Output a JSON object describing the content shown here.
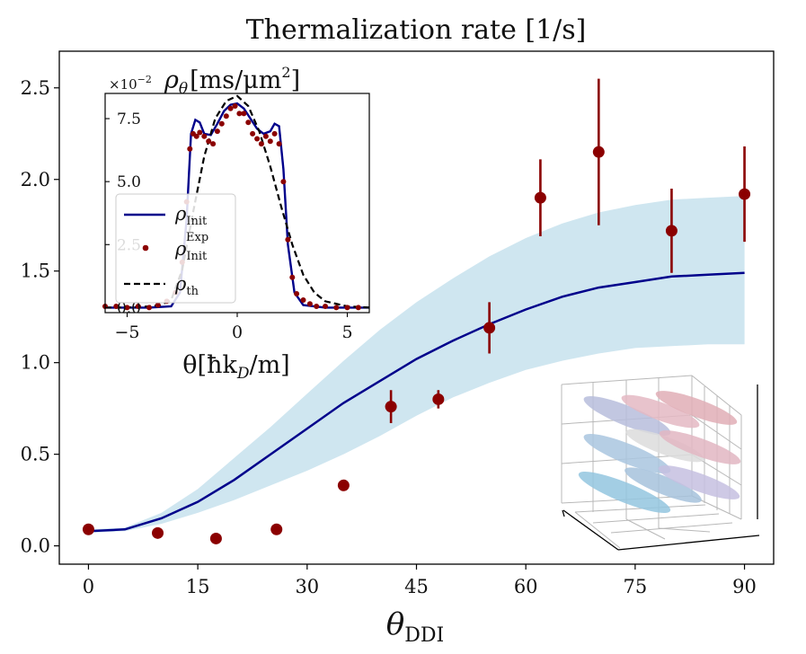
{
  "chart_data": [
    {
      "type": "scatter",
      "title": "Thermalization rate [1/s]",
      "xlabel": "θ",
      "xlabel_sub": "DDI",
      "ylabel": "",
      "xlim": [
        -4,
        94
      ],
      "ylim": [
        -0.1,
        2.7
      ],
      "xticks": [
        0,
        15,
        30,
        45,
        60,
        75,
        90
      ],
      "xtick_labels": [
        "0",
        "15",
        "30",
        "45",
        "60",
        "75",
        "90"
      ],
      "yticks": [
        0.0,
        0.5,
        1.0,
        1.5,
        2.0,
        2.5
      ],
      "ytick_labels": [
        "0.0",
        "0.5",
        "1.0",
        "1.5",
        "2.0",
        "2.5"
      ],
      "colors": {
        "theory": "#00008b",
        "band": "#cfe6f0",
        "experiment": "#8b0000"
      },
      "theory_line": {
        "x": [
          0,
          5,
          10,
          15,
          20,
          25,
          30,
          35,
          40,
          45,
          50,
          55,
          60,
          65,
          70,
          75,
          80,
          85,
          90
        ],
        "y": [
          0.08,
          0.09,
          0.15,
          0.24,
          0.36,
          0.5,
          0.64,
          0.78,
          0.9,
          1.02,
          1.12,
          1.21,
          1.29,
          1.36,
          1.41,
          1.44,
          1.47,
          1.48,
          1.49
        ]
      },
      "band": {
        "x": [
          0,
          5,
          10,
          15,
          20,
          25,
          30,
          35,
          40,
          45,
          50,
          55,
          60,
          65,
          70,
          75,
          80,
          85,
          90
        ],
        "upper": [
          0.09,
          0.1,
          0.18,
          0.31,
          0.48,
          0.65,
          0.83,
          1.01,
          1.18,
          1.33,
          1.46,
          1.58,
          1.68,
          1.76,
          1.82,
          1.86,
          1.89,
          1.9,
          1.91
        ],
        "lower": [
          0.07,
          0.08,
          0.12,
          0.18,
          0.25,
          0.33,
          0.41,
          0.5,
          0.6,
          0.71,
          0.81,
          0.89,
          0.96,
          1.01,
          1.05,
          1.08,
          1.09,
          1.1,
          1.1
        ]
      },
      "experiment": {
        "x": [
          0,
          9.5,
          17.5,
          25.8,
          35,
          41.5,
          48,
          55,
          62,
          70,
          80,
          90
        ],
        "y": [
          0.09,
          0.07,
          0.04,
          0.09,
          0.33,
          0.76,
          0.8,
          1.19,
          1.9,
          2.15,
          1.72,
          1.92
        ],
        "err": [
          0,
          0,
          0,
          0,
          0,
          0.09,
          0.05,
          0.14,
          0.21,
          0.4,
          0.23,
          0.26
        ]
      }
    },
    {
      "type": "line",
      "title": "ρ",
      "title_sub": "θ",
      "title_unit": "[ms/μm",
      "title_unit_sup": "2",
      "title_unit_close": "]",
      "scale_label": "×10",
      "scale_exp": "−2",
      "xlabel": "θ[ħk",
      "xlabel_sub": "D",
      "xlabel_tail": "/m]",
      "xlim": [
        -6,
        6
      ],
      "ylim": [
        -0.2,
        8.5
      ],
      "xticks": [
        -5,
        0,
        5
      ],
      "xtick_labels": [
        "−5",
        "0",
        "5"
      ],
      "yticks": [
        0,
        2.5,
        5.0,
        7.5
      ],
      "ytick_labels": [
        "0.0",
        "2.5",
        "5.0",
        "7.5"
      ],
      "legend": [
        {
          "label": "ρ",
          "sub": "Init",
          "sup": "",
          "style": "line",
          "color": "#00008b"
        },
        {
          "label": "ρ",
          "sub": "Init",
          "sup": "Exp",
          "style": "dot",
          "color": "#8b0000"
        },
        {
          "label": "ρ",
          "sub": "th",
          "sup": "",
          "style": "dashed",
          "color": "#000000"
        }
      ],
      "series": [
        {
          "name": "ρ_Init",
          "x": [
            -6,
            -5,
            -4,
            -3,
            -2.6,
            -2.3,
            -2.1,
            -1.9,
            -1.7,
            -1.5,
            -1.2,
            -0.9,
            -0.6,
            -0.3,
            0,
            0.3,
            0.6,
            0.9,
            1.2,
            1.5,
            1.7,
            1.9,
            2.1,
            2.3,
            2.6,
            3,
            4,
            5,
            6
          ],
          "y": [
            0,
            0,
            0,
            0.05,
            0.6,
            3.5,
            6.9,
            7.45,
            7.35,
            6.9,
            6.85,
            7.3,
            7.8,
            8.05,
            8.1,
            7.9,
            7.5,
            7.1,
            6.9,
            7.0,
            7.3,
            7.2,
            5.5,
            2.5,
            0.6,
            0.1,
            0,
            0,
            0
          ]
        },
        {
          "name": "ρ_th",
          "x": [
            -6,
            -5,
            -4,
            -3.5,
            -3,
            -2.5,
            -2,
            -1.5,
            -1,
            -0.5,
            0,
            0.5,
            1,
            1.5,
            2,
            2.5,
            3,
            3.5,
            4,
            5,
            6
          ],
          "y": [
            0,
            0,
            0.05,
            0.1,
            0.3,
            1.5,
            3.8,
            6.0,
            7.5,
            8.2,
            8.4,
            8.0,
            7.0,
            5.6,
            4.0,
            2.5,
            1.3,
            0.6,
            0.25,
            0.05,
            0
          ]
        },
        {
          "name": "ρ_Init^Exp",
          "x": [
            -6,
            -5.5,
            -5,
            -4.5,
            -4,
            -3.6,
            -3.2,
            -2.8,
            -2.5,
            -2.3,
            -2.15,
            -2.0,
            -1.85,
            -1.7,
            -1.5,
            -1.3,
            -1.1,
            -0.9,
            -0.7,
            -0.5,
            -0.3,
            -0.1,
            0.1,
            0.3,
            0.5,
            0.7,
            0.9,
            1.1,
            1.3,
            1.5,
            1.7,
            1.9,
            2.1,
            2.3,
            2.5,
            2.7,
            3.0,
            3.3,
            3.6,
            4.0,
            4.5,
            5.0,
            5.5
          ],
          "y": [
            0.05,
            0.05,
            0.0,
            0.05,
            0.0,
            0.1,
            0.25,
            0.6,
            1.8,
            4.2,
            6.3,
            6.9,
            6.8,
            6.95,
            6.8,
            6.6,
            6.5,
            7.0,
            7.3,
            7.6,
            7.9,
            8.0,
            7.7,
            7.7,
            7.35,
            6.9,
            6.7,
            6.5,
            6.8,
            6.6,
            6.9,
            6.5,
            5.0,
            2.7,
            1.2,
            0.55,
            0.3,
            0.15,
            0.05,
            0.05,
            0.0,
            0.0,
            0.0
          ]
        }
      ]
    }
  ]
}
